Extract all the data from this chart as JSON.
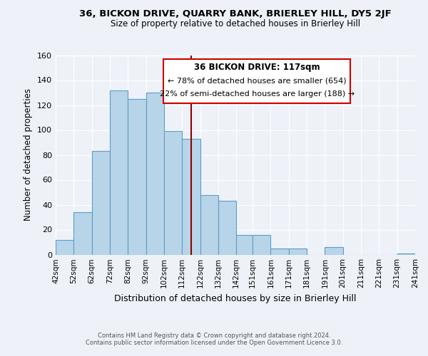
{
  "title": "36, BICKON DRIVE, QUARRY BANK, BRIERLEY HILL, DY5 2JF",
  "subtitle": "Size of property relative to detached houses in Brierley Hill",
  "xlabel": "Distribution of detached houses by size in Brierley Hill",
  "ylabel": "Number of detached properties",
  "footer_line1": "Contains HM Land Registry data © Crown copyright and database right 2024.",
  "footer_line2": "Contains public sector information licensed under the Open Government Licence 3.0.",
  "annotation_title": "36 BICKON DRIVE: 117sqm",
  "annotation_line1": "← 78% of detached houses are smaller (654)",
  "annotation_line2": "22% of semi-detached houses are larger (188) →",
  "bar_color": "#b8d4e8",
  "bar_edge_color": "#5a9ec9",
  "ref_line_color": "#8b0000",
  "ref_line_x": 117,
  "annotation_box_edge": "#cc0000",
  "background_color": "#eef2f8",
  "ylim": [
    0,
    160
  ],
  "yticks": [
    0,
    20,
    40,
    60,
    80,
    100,
    120,
    140,
    160
  ],
  "bins": [
    42,
    52,
    62,
    72,
    82,
    92,
    102,
    112,
    122,
    132,
    142,
    151,
    161,
    171,
    181,
    191,
    201,
    211,
    221,
    231,
    241
  ],
  "counts": [
    12,
    34,
    83,
    132,
    125,
    130,
    99,
    93,
    48,
    43,
    16,
    16,
    5,
    5,
    0,
    6,
    0,
    0,
    0,
    1
  ],
  "tick_labels": [
    "42sqm",
    "52sqm",
    "62sqm",
    "72sqm",
    "82sqm",
    "92sqm",
    "102sqm",
    "112sqm",
    "122sqm",
    "132sqm",
    "142sqm",
    "151sqm",
    "161sqm",
    "171sqm",
    "181sqm",
    "191sqm",
    "201sqm",
    "211sqm",
    "221sqm",
    "231sqm",
    "241sqm"
  ]
}
